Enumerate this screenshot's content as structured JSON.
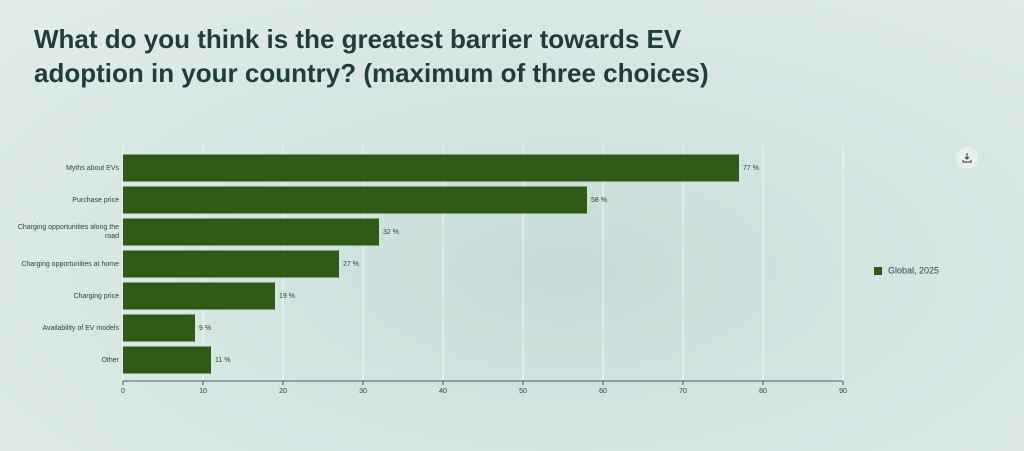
{
  "chart_data": {
    "type": "bar",
    "orientation": "horizontal",
    "title": "What do you think is the greatest barrier towards EV adoption in your country? (maximum of three choices)",
    "categories": [
      "Myths about EVs",
      "Purchase price",
      "Charging opportunities along the road",
      "Charging opportunities at home",
      "Charging price",
      "Availability of EV models",
      "Other"
    ],
    "series": [
      {
        "name": "Global, 2025",
        "color": "#2f5a18",
        "values": [
          77,
          58,
          32,
          27,
          19,
          9,
          11
        ],
        "value_labels": [
          "77 %",
          "58 %",
          "32 %",
          "27 %",
          "19 %",
          "9 %",
          "11 %"
        ]
      }
    ],
    "xlim": [
      0,
      90
    ],
    "xticks": [
      0,
      10,
      20,
      30,
      40,
      50,
      60,
      70,
      80,
      90
    ],
    "grid": true,
    "legend": "right"
  }
}
